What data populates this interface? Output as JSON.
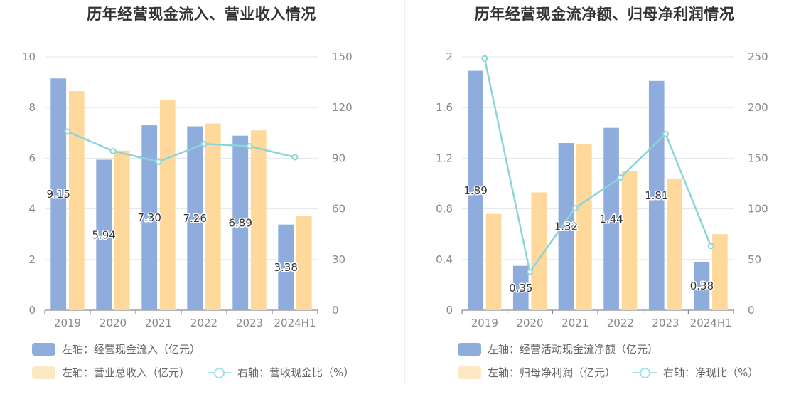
{
  "colors": {
    "blue": "#8eacdc",
    "orange": "#fed99b",
    "line": "#8bd5d9",
    "legend_orange": "#fde8c4",
    "legend_line": "#9fe0ea",
    "grid": "#e3e6ee",
    "axis_text": "#888888"
  },
  "left": {
    "title": "历年经营现金流入、营业收入情况",
    "legend": {
      "series1": "左轴：经营现金流入（亿元）",
      "series2": "左轴：营业总收入（亿元）",
      "series3": "右轴：营收现金比（%）"
    },
    "chart_data": {
      "type": "bar",
      "title": "历年经营现金流入、营业收入情况",
      "categories": [
        "2019",
        "2020",
        "2021",
        "2022",
        "2023",
        "2024H1"
      ],
      "left_axis": {
        "ticks": [
          "0",
          "2",
          "4",
          "6",
          "8",
          "10"
        ],
        "ylim": [
          0,
          10
        ]
      },
      "right_axis": {
        "ticks": [
          "0",
          "30",
          "60",
          "90",
          "120",
          "150"
        ],
        "ylim": [
          0,
          150
        ]
      },
      "series": [
        {
          "name": "左轴：经营现金流入（亿元）",
          "type": "bar",
          "axis": "left",
          "values": [
            9.15,
            5.94,
            7.3,
            7.26,
            6.89,
            3.38
          ],
          "labels": [
            "9.15",
            "5.94",
            "7.30",
            "7.26",
            "6.89",
            "3.38"
          ]
        },
        {
          "name": "左轴：营业总收入（亿元）",
          "type": "bar",
          "axis": "left",
          "values": [
            8.65,
            6.3,
            8.3,
            7.37,
            7.1,
            3.73
          ]
        },
        {
          "name": "右轴：营收现金比（%）",
          "type": "line",
          "axis": "right",
          "values": [
            105.8,
            94.3,
            87.9,
            98.5,
            97.1,
            90.6
          ]
        }
      ]
    }
  },
  "right": {
    "title": "历年经营现金流净额、归母净利润情况",
    "legend": {
      "series1": "左轴：经营活动现金流净额（亿元）",
      "series2": "左轴：归母净利润（亿元）",
      "series3": "右轴：净现比（%）"
    },
    "chart_data": {
      "type": "bar",
      "title": "历年经营现金流净额、归母净利润情况",
      "categories": [
        "2019",
        "2020",
        "2021",
        "2022",
        "2023",
        "2024H1"
      ],
      "left_axis": {
        "ticks": [
          "0",
          "0.4",
          "0.8",
          "1.2",
          "1.6",
          "2"
        ],
        "ylim": [
          0,
          2
        ]
      },
      "right_axis": {
        "ticks": [
          "0",
          "50",
          "100",
          "150",
          "200",
          "250"
        ],
        "ylim": [
          0,
          250
        ]
      },
      "series": [
        {
          "name": "左轴：经营活动现金流净额（亿元）",
          "type": "bar",
          "axis": "left",
          "values": [
            1.89,
            0.35,
            1.32,
            1.44,
            1.81,
            0.38
          ],
          "labels": [
            "1.89",
            "0.35",
            "1.32",
            "1.44",
            "1.81",
            "0.38"
          ]
        },
        {
          "name": "左轴：归母净利润（亿元）",
          "type": "bar",
          "axis": "left",
          "values": [
            0.76,
            0.93,
            1.31,
            1.1,
            1.04,
            0.6
          ]
        },
        {
          "name": "右轴：净现比（%）",
          "type": "line",
          "axis": "right",
          "values": [
            248.5,
            37.7,
            100.8,
            130.9,
            174.0,
            63.3
          ]
        }
      ]
    }
  }
}
